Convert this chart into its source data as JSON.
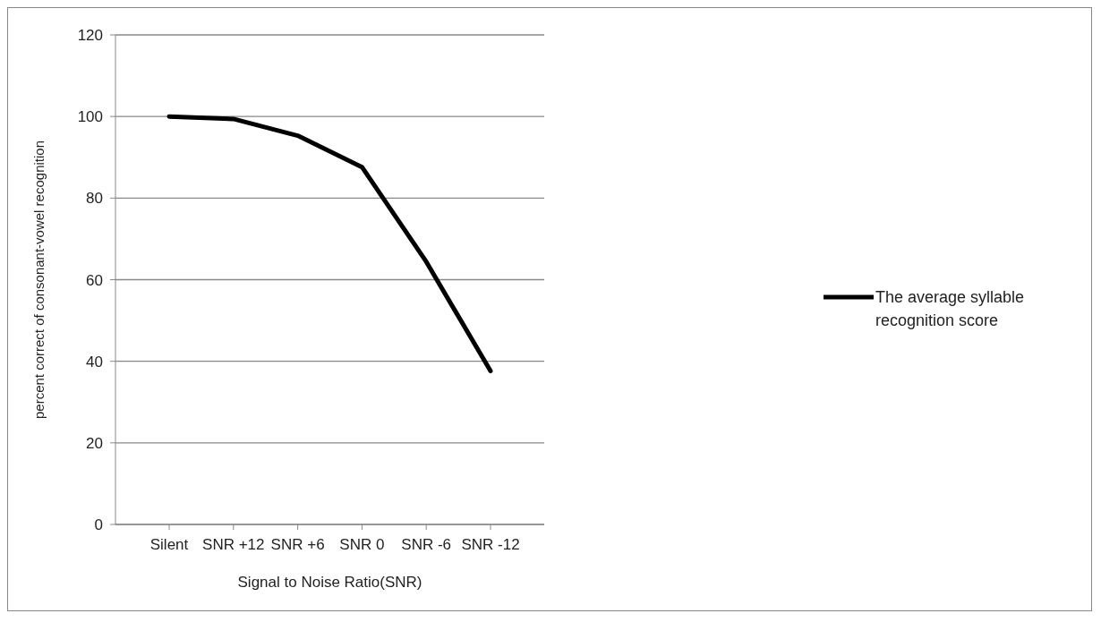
{
  "chart_data": {
    "type": "line",
    "xlabel": "Signal to Noise Ratio(SNR)",
    "ylabel": "percent correct of consonant-vowel recognition",
    "categories": [
      "Silent",
      "SNR +12",
      "SNR +6",
      "SNR 0",
      "SNR -6",
      "SNR -12"
    ],
    "series": [
      {
        "name": "The average syllable recognition score",
        "color": "#000000",
        "values": [
          100,
          99.4,
          95.3,
          87.6,
          64.4,
          37.6
        ]
      }
    ],
    "ylim": [
      0,
      120
    ],
    "yticks": [
      0,
      20,
      40,
      60,
      80,
      100,
      120
    ],
    "grid": "y",
    "legend": "right",
    "marker": "none",
    "line_style": "solid"
  }
}
